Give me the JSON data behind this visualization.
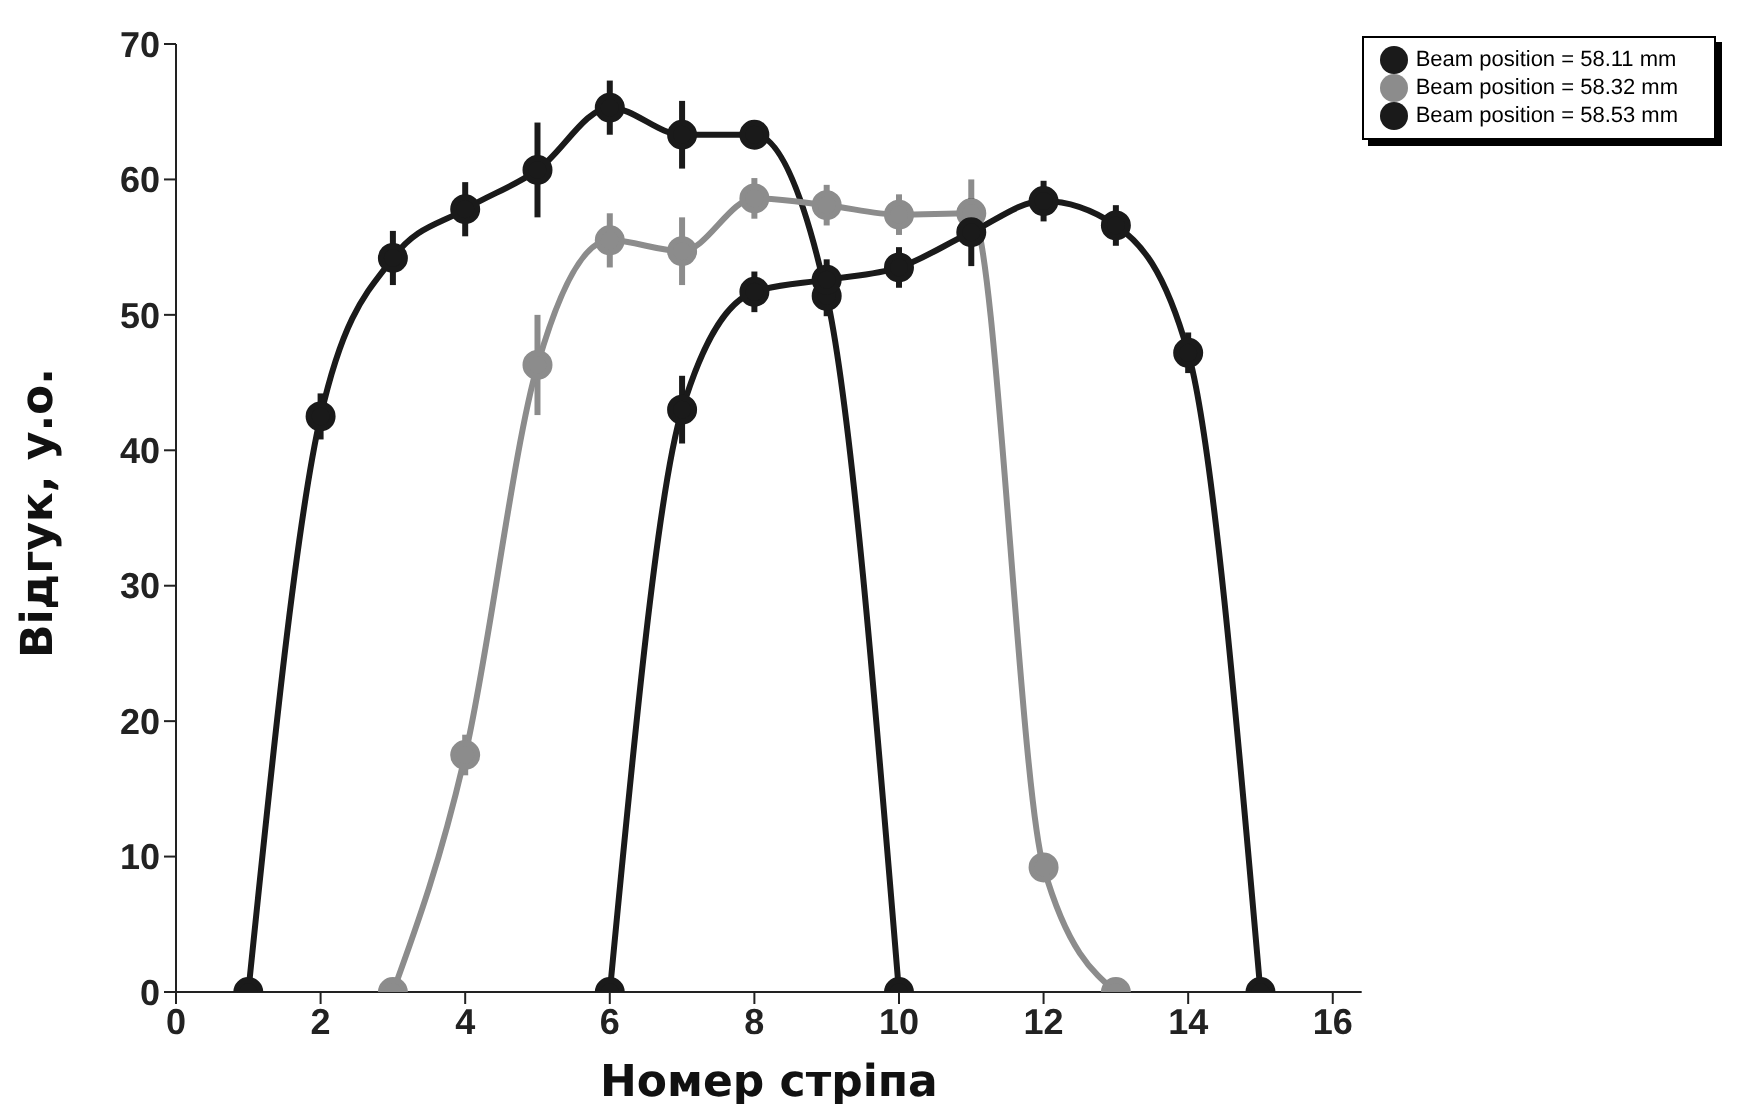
{
  "chart_data": {
    "type": "line",
    "xlabel": "Номер стріпа",
    "ylabel": "Відгук, у.о.",
    "xlim": [
      0,
      16.4
    ],
    "xticks": [
      0,
      2,
      4,
      6,
      8,
      10,
      12,
      14,
      16
    ],
    "ylim": [
      0,
      70
    ],
    "yticks": [
      0,
      10,
      20,
      30,
      40,
      50,
      60,
      70
    ],
    "grid": false,
    "legend": "top right",
    "marker": "circle",
    "line_style": "solid",
    "series": [
      {
        "name": "Beam position = 58.11  mm",
        "color": "#1a1a1a",
        "x": [
          1,
          2,
          3,
          4,
          5,
          6,
          7,
          8,
          9,
          10
        ],
        "values": [
          0,
          42.5,
          54.2,
          57.8,
          60.7,
          65.3,
          63.3,
          63.3,
          51.4,
          0
        ],
        "errors": [
          null,
          1.7,
          2,
          2,
          3.5,
          2,
          2.5,
          1,
          1.5,
          null
        ]
      },
      {
        "name": "Beam position = 58.32  mm",
        "color": "#8c8c8c",
        "x": [
          3,
          4,
          5,
          6,
          7,
          8,
          9,
          10,
          11,
          12,
          13
        ],
        "values": [
          0,
          17.5,
          46.3,
          55.5,
          54.7,
          58.6,
          58.1,
          57.4,
          57.5,
          9.2,
          0
        ],
        "errors": [
          null,
          1.5,
          3.7,
          2,
          2.5,
          1.5,
          1.5,
          1.5,
          2.5,
          1,
          null
        ]
      },
      {
        "name": "Beam position = 58.53  mm",
        "color": "#1a1a1a",
        "x": [
          6,
          7,
          8,
          9,
          10,
          11,
          12,
          13,
          14,
          15
        ],
        "values": [
          0,
          43,
          51.7,
          52.6,
          53.5,
          56.1,
          58.4,
          56.6,
          47.2,
          0
        ],
        "errors": [
          null,
          2.5,
          1.5,
          1.5,
          1.5,
          2.5,
          1.5,
          1.5,
          1.5,
          null
        ]
      }
    ]
  }
}
